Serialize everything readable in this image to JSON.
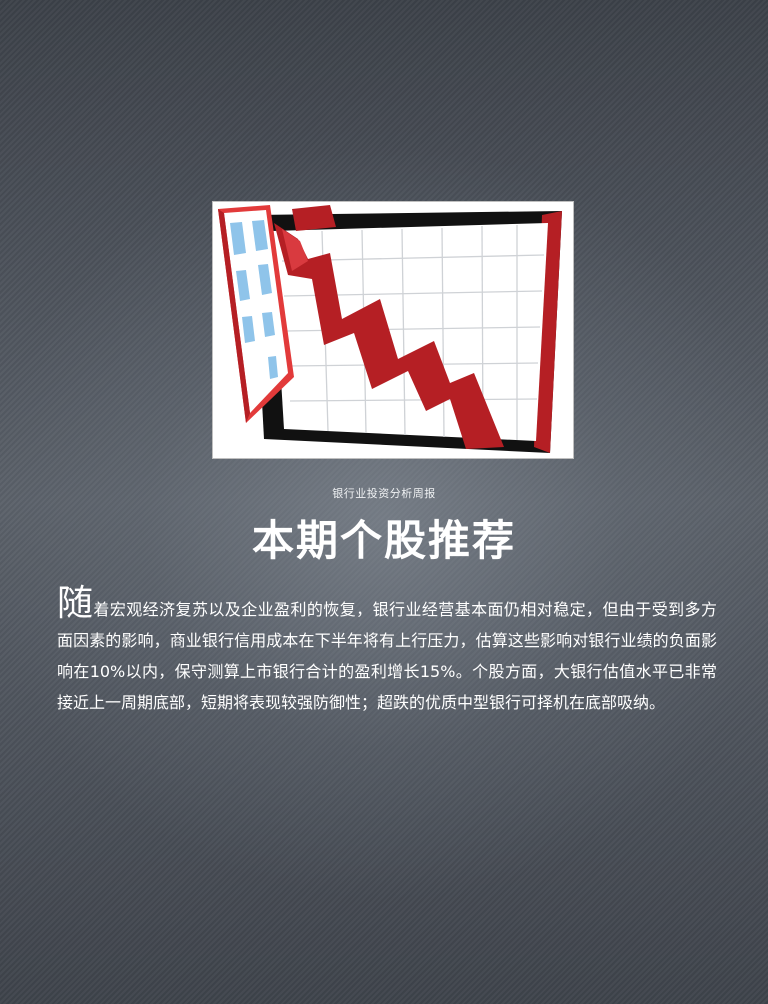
{
  "report": {
    "subtitle": "银行业投资分析周报",
    "title": "本期个股推荐",
    "body_dropcap": "随",
    "body_text": "着宏观经济复苏以及企业盈利的恢复，银行业经营基本面仍相对稳定，但由于受到多方面因素的影响，商业银行信用成本在下半年将有上行压力，估算这些影响对银行业绩的负面影响在10%以内，保守测算上市银行合计的盈利增长15%。个股方面，大银行估值水平已非常接近上一周期底部，短期将表现较强防御性；超跌的优质中型银行可择机在底部吸纳。"
  },
  "illustration": {
    "icon": "falling-stock-chart-icon",
    "colors": {
      "arrow": "#b51f24",
      "frame": "#111111",
      "building": "#e23a3a",
      "windows": "#8fc4ea",
      "grid": "#cfd2d6"
    }
  }
}
